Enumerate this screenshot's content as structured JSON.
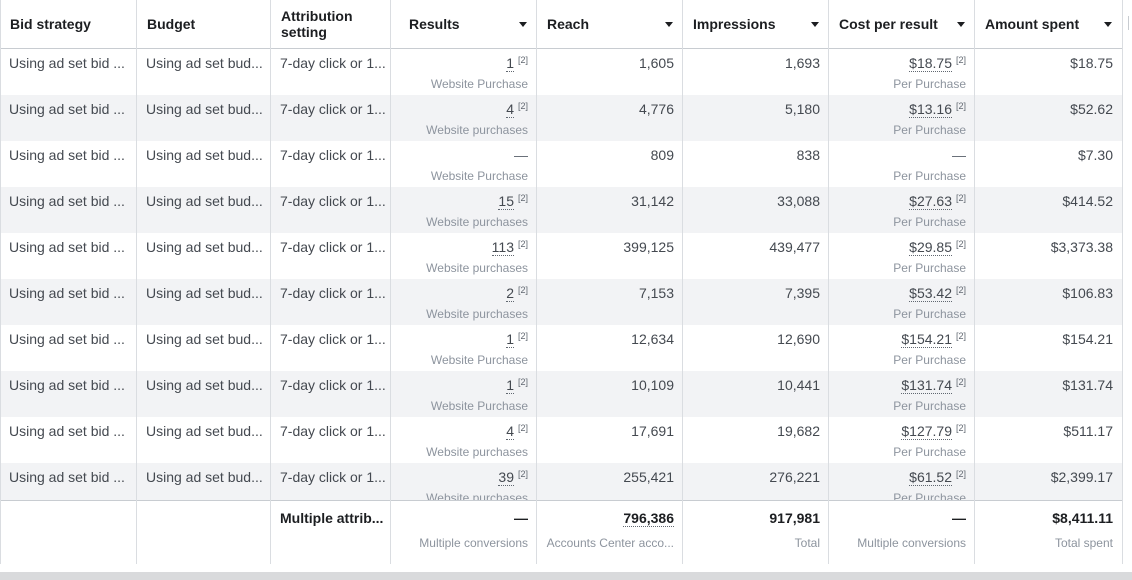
{
  "headers": {
    "bid_strategy": "Bid strategy",
    "budget": "Budget",
    "attribution": "Attribution setting",
    "results": "Results",
    "reach": "Reach",
    "impressions": "Impressions",
    "cost_per_result": "Cost per result",
    "amount_spent": "Amount spent"
  },
  "footnote": "[2]",
  "rows": [
    {
      "bid": "Using ad set bid ...",
      "budget": "Using ad set bud...",
      "attr": "7-day click or 1...",
      "results": "1",
      "results_sub": "Website Purchase",
      "reach": "1,605",
      "impressions": "1,693",
      "cpr": "$18.75",
      "cpr_sub": "Per Purchase",
      "spent": "$18.75"
    },
    {
      "bid": "Using ad set bid ...",
      "budget": "Using ad set bud...",
      "attr": "7-day click or 1...",
      "results": "4",
      "results_sub": "Website purchases",
      "reach": "4,776",
      "impressions": "5,180",
      "cpr": "$13.16",
      "cpr_sub": "Per Purchase",
      "spent": "$52.62"
    },
    {
      "bid": "Using ad set bid ...",
      "budget": "Using ad set bud...",
      "attr": "7-day click or 1...",
      "results": "—",
      "results_sub": "Website Purchase",
      "reach": "809",
      "impressions": "838",
      "cpr": "—",
      "cpr_sub": "Per Purchase",
      "spent": "$7.30"
    },
    {
      "bid": "Using ad set bid ...",
      "budget": "Using ad set bud...",
      "attr": "7-day click or 1...",
      "results": "15",
      "results_sub": "Website purchases",
      "reach": "31,142",
      "impressions": "33,088",
      "cpr": "$27.63",
      "cpr_sub": "Per Purchase",
      "spent": "$414.52"
    },
    {
      "bid": "Using ad set bid ...",
      "budget": "Using ad set bud...",
      "attr": "7-day click or 1...",
      "results": "113",
      "results_sub": "Website purchases",
      "reach": "399,125",
      "impressions": "439,477",
      "cpr": "$29.85",
      "cpr_sub": "Per Purchase",
      "spent": "$3,373.38"
    },
    {
      "bid": "Using ad set bid ...",
      "budget": "Using ad set bud...",
      "attr": "7-day click or 1...",
      "results": "2",
      "results_sub": "Website purchases",
      "reach": "7,153",
      "impressions": "7,395",
      "cpr": "$53.42",
      "cpr_sub": "Per Purchase",
      "spent": "$106.83"
    },
    {
      "bid": "Using ad set bid ...",
      "budget": "Using ad set bud...",
      "attr": "7-day click or 1...",
      "results": "1",
      "results_sub": "Website Purchase",
      "reach": "12,634",
      "impressions": "12,690",
      "cpr": "$154.21",
      "cpr_sub": "Per Purchase",
      "spent": "$154.21"
    },
    {
      "bid": "Using ad set bid ...",
      "budget": "Using ad set bud...",
      "attr": "7-day click or 1...",
      "results": "1",
      "results_sub": "Website Purchase",
      "reach": "10,109",
      "impressions": "10,441",
      "cpr": "$131.74",
      "cpr_sub": "Per Purchase",
      "spent": "$131.74"
    },
    {
      "bid": "Using ad set bid ...",
      "budget": "Using ad set bud...",
      "attr": "7-day click or 1...",
      "results": "4",
      "results_sub": "Website purchases",
      "reach": "17,691",
      "impressions": "19,682",
      "cpr": "$127.79",
      "cpr_sub": "Per Purchase",
      "spent": "$511.17"
    },
    {
      "bid": "Using ad set bid ...",
      "budget": "Using ad set bud...",
      "attr": "7-day click or 1...",
      "results": "39",
      "results_sub": "Website purchases",
      "reach": "255,421",
      "impressions": "276,221",
      "cpr": "$61.52",
      "cpr_sub": "Per Purchase",
      "spent": "$2,399.17"
    }
  ],
  "totals": {
    "attr": "Multiple attrib...",
    "results": "—",
    "results_sub": "Multiple conversions",
    "reach": "796,386",
    "reach_sub": "Accounts Center acco...",
    "impressions": "917,981",
    "impressions_sub": "Total",
    "cpr": "—",
    "cpr_sub": "Multiple conversions",
    "spent": "$8,411.11",
    "spent_sub": "Total spent"
  }
}
